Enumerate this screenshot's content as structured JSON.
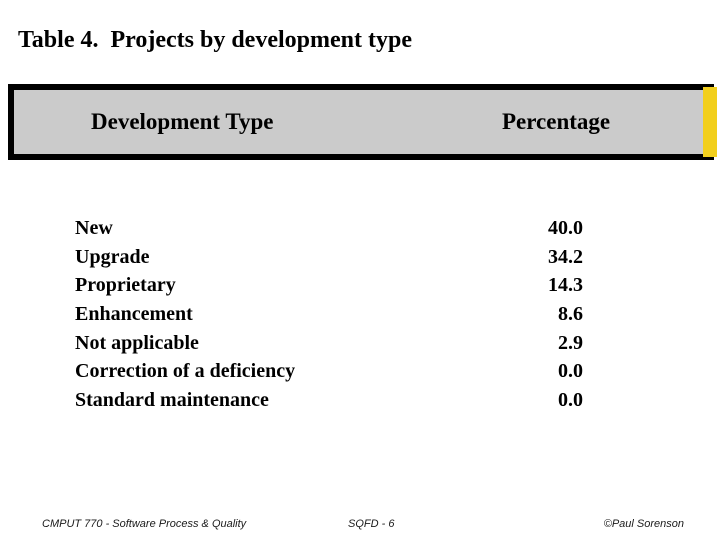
{
  "slide": {
    "title": "Table 4.  Projects by development type",
    "table": {
      "headers": {
        "type_label": "Development Type",
        "percentage_label": "Percentage"
      },
      "rows": [
        {
          "label": "New",
          "value": "40.0"
        },
        {
          "label": "Upgrade",
          "value": "34.2"
        },
        {
          "label": "Proprietary",
          "value": "14.3"
        },
        {
          "label": "Enhancement",
          "value": "8.6"
        },
        {
          "label": "Not applicable",
          "value": "2.9"
        },
        {
          "label": "Correction of a deficiency",
          "value": "0.0"
        },
        {
          "label": "Standard maintenance",
          "value": "0.0"
        }
      ]
    },
    "footer": {
      "left": "CMPUT 770 - Software Process & Quality",
      "center": "SQFD - 6",
      "right": "©Paul Sorenson"
    },
    "colors": {
      "header_fill": "#cbcbcb",
      "border": "#000000",
      "accent_yellow": "#f2cf1d",
      "text": "#000000",
      "background": "#ffffff"
    }
  },
  "chart_data": {
    "type": "table",
    "title": "Table 4.  Projects by development type",
    "columns": [
      "Development Type",
      "Percentage"
    ],
    "categories": [
      "New",
      "Upgrade",
      "Proprietary",
      "Enhancement",
      "Not applicable",
      "Correction of a deficiency",
      "Standard maintenance"
    ],
    "values": [
      40.0,
      34.2,
      14.3,
      8.6,
      2.9,
      0.0,
      0.0
    ]
  }
}
